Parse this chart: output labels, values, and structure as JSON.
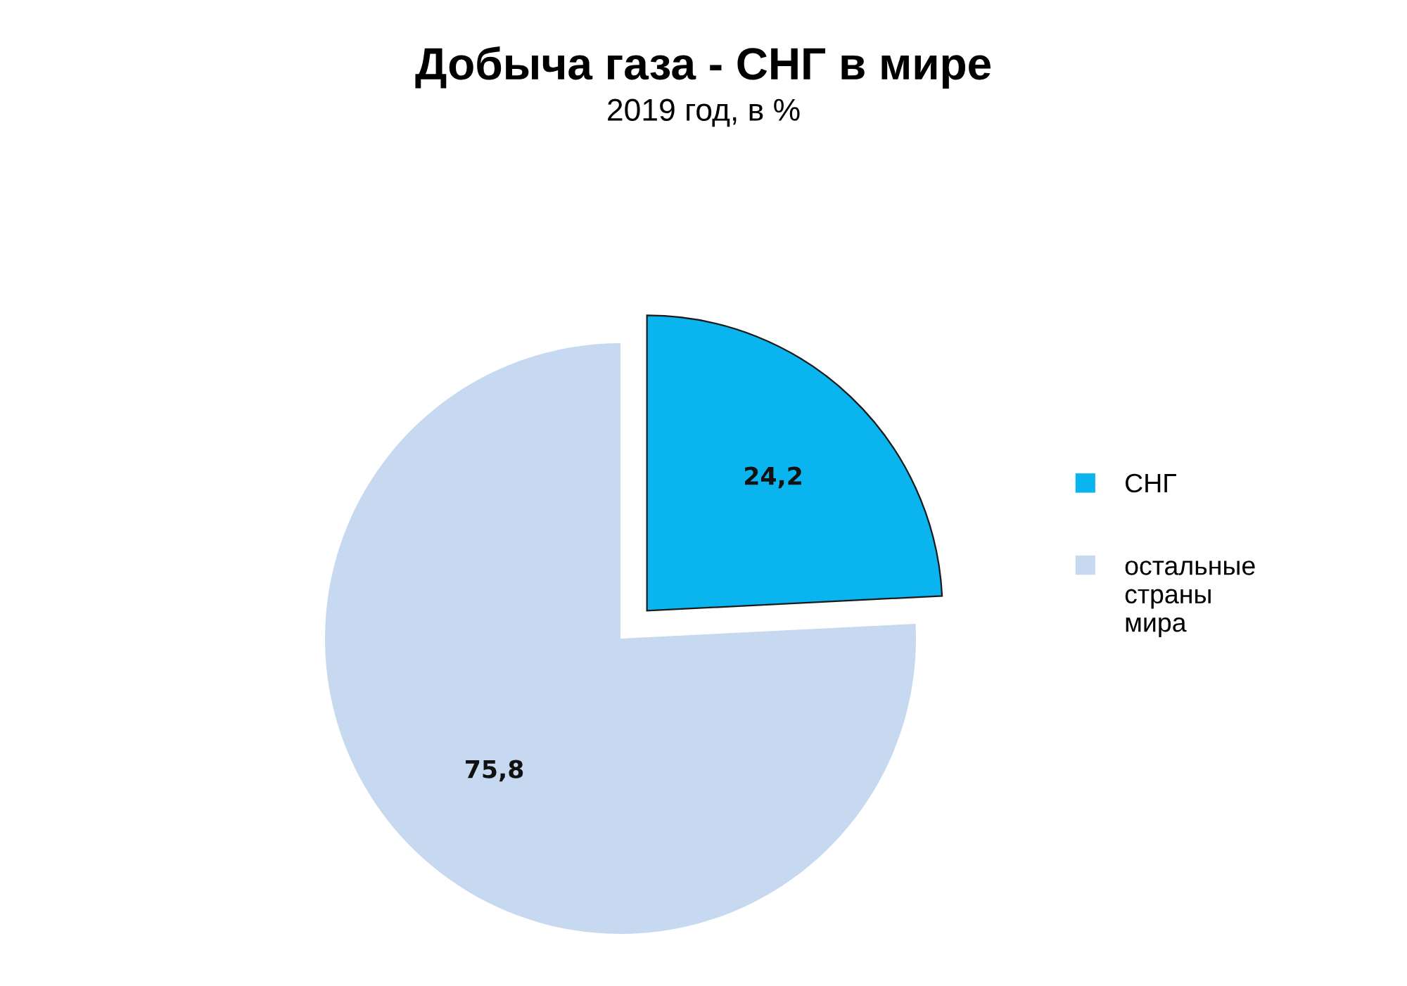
{
  "chart_data": {
    "type": "pie",
    "title": "Добыча газа - СНГ в мире",
    "subtitle": "2019 год, в %",
    "categories": [
      "СНГ",
      "остальные страны мира"
    ],
    "values": [
      24.2,
      75.8
    ],
    "colors": [
      "#0ab4ee",
      "#c6d9f0"
    ],
    "value_labels": [
      "24,2",
      "75,8"
    ],
    "legend": "right"
  }
}
